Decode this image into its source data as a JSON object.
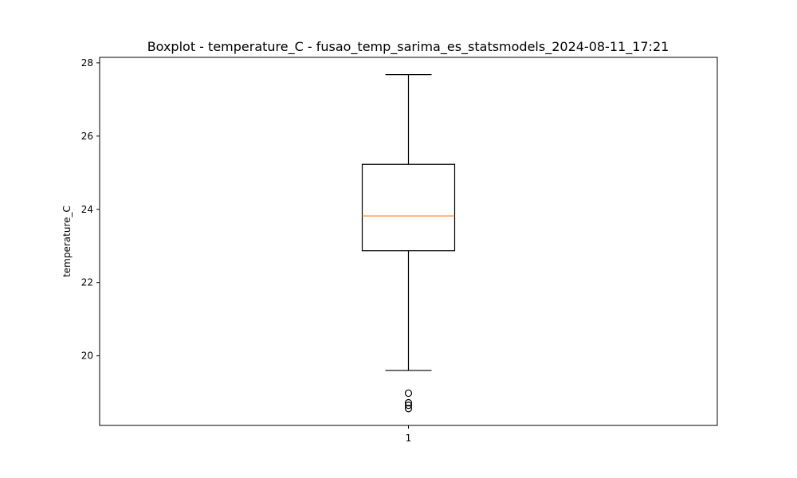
{
  "chart_data": {
    "type": "boxplot",
    "title": "Boxplot - temperature_C - fusao_temp_sarima_es_statsmodels_2024-08-11_17:21",
    "xlabel": "",
    "ylabel": "temperature_C",
    "categories": [
      "1"
    ],
    "ylim": [
      18.1,
      28.15
    ],
    "yticks": [
      20,
      22,
      24,
      26,
      28
    ],
    "grid": false,
    "boxes": [
      {
        "category": "1",
        "whisker_low": 19.6,
        "q1": 22.87,
        "median": 23.82,
        "q3": 25.23,
        "whisker_high": 27.68,
        "outliers": [
          18.98,
          18.72,
          18.65,
          18.56
        ]
      }
    ],
    "colors": {
      "box": "#000000",
      "median": "#ff7f0e",
      "outlier": "#000000"
    }
  }
}
